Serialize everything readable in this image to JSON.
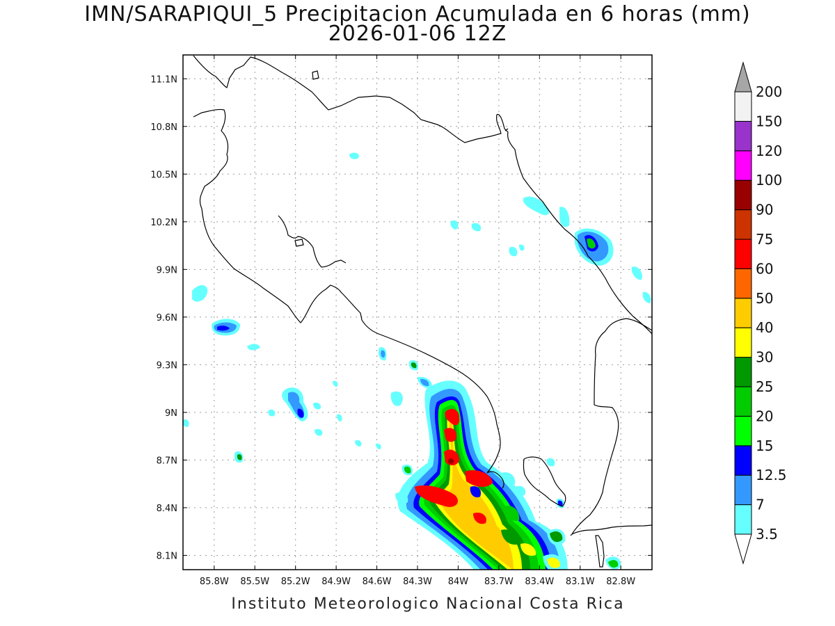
{
  "title": {
    "line1": "IMN/SARAPIQUI_5 Precipitacion Acumulada en 6 horas (mm)",
    "line2": "2026-01-06 12Z"
  },
  "credit": "Instituto Meteorologico Nacional Costa Rica",
  "map": {
    "lon_range": [
      -86.03,
      -82.57
    ],
    "lat_range": [
      8.01,
      11.25
    ],
    "lon_ticks": [
      {
        "value": -85.8,
        "label": "85.8W"
      },
      {
        "value": -85.5,
        "label": "85.5W"
      },
      {
        "value": -85.2,
        "label": "85.2W"
      },
      {
        "value": -84.9,
        "label": "84.9W"
      },
      {
        "value": -84.6,
        "label": "84.6W"
      },
      {
        "value": -84.3,
        "label": "84.3W"
      },
      {
        "value": -84.0,
        "label": "84W"
      },
      {
        "value": -83.7,
        "label": "83.7W"
      },
      {
        "value": -83.4,
        "label": "83.4W"
      },
      {
        "value": -83.1,
        "label": "83.1W"
      },
      {
        "value": -82.8,
        "label": "82.8W"
      }
    ],
    "lat_ticks": [
      {
        "value": 11.1,
        "label": "11.1N"
      },
      {
        "value": 10.8,
        "label": "10.8N"
      },
      {
        "value": 10.5,
        "label": "10.5N"
      },
      {
        "value": 10.2,
        "label": "10.2N"
      },
      {
        "value": 9.9,
        "label": "9.9N"
      },
      {
        "value": 9.6,
        "label": "9.6N"
      },
      {
        "value": 9.3,
        "label": "9.3N"
      },
      {
        "value": 9.0,
        "label": "9N"
      },
      {
        "value": 8.7,
        "label": "8.7N"
      },
      {
        "value": 8.4,
        "label": "8.4N"
      },
      {
        "value": 8.1,
        "label": "8.1N"
      }
    ],
    "grid": true
  },
  "colorbar": {
    "labels": [
      "3.5",
      "7",
      "12.5",
      "15",
      "20",
      "25",
      "30",
      "40",
      "50",
      "60",
      "75",
      "90",
      "100",
      "120",
      "150",
      "200"
    ],
    "colors": [
      "#66ffff",
      "#3399ff",
      "#0000ff",
      "#00ff00",
      "#00cc00",
      "#009900",
      "#ffff00",
      "#ffcc00",
      "#ff6600",
      "#ff0000",
      "#cc3300",
      "#990000",
      "#ff00ff",
      "#9933cc",
      "#f2f2f2"
    ],
    "over_color": "#a6a6a6",
    "under_color": "#ffffff"
  }
}
